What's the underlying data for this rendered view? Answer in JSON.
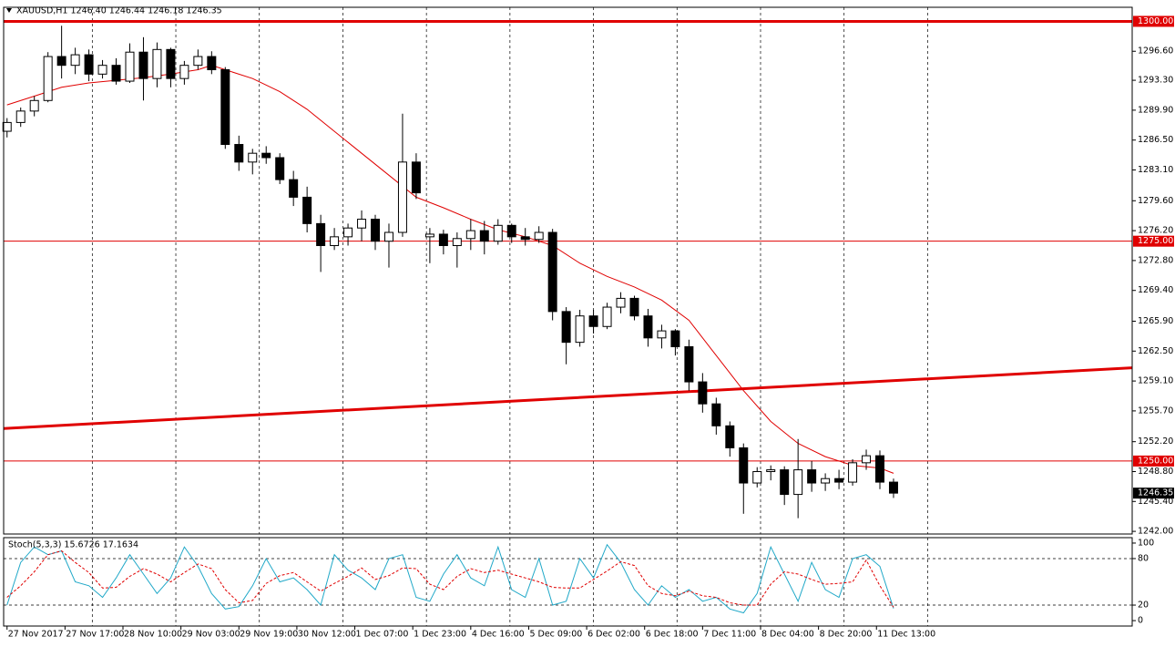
{
  "chart_data": [
    {
      "type": "candlestick",
      "title": "XAUUSD,H1  1246.40 1246.44 1246.18 1246.35",
      "xlim": [
        -1,
        330
      ],
      "ylim": [
        1241.7,
        1301.6
      ],
      "yticks": [
        {
          "value": 1296.6,
          "label": "1296.60"
        },
        {
          "value": 1293.3,
          "label": "1293.30"
        },
        {
          "value": 1289.9,
          "label": "1289.90"
        },
        {
          "value": 1286.5,
          "label": "1286.50"
        },
        {
          "value": 1283.1,
          "label": "1283.10"
        },
        {
          "value": 1279.6,
          "label": "1279.60"
        },
        {
          "value": 1276.2,
          "label": "1276.20"
        },
        {
          "value": 1272.8,
          "label": "1272.80"
        },
        {
          "value": 1269.4,
          "label": "1269.40"
        },
        {
          "value": 1265.9,
          "label": "1265.90"
        },
        {
          "value": 1262.5,
          "label": "1262.50"
        },
        {
          "value": 1259.1,
          "label": "1259.10"
        },
        {
          "value": 1255.7,
          "label": "1255.70"
        },
        {
          "value": 1252.2,
          "label": "1252.20"
        },
        {
          "value": 1248.8,
          "label": "1248.80"
        },
        {
          "value": 1245.4,
          "label": "1245.40"
        },
        {
          "value": 1242.0,
          "label": "1242.00"
        }
      ],
      "xgrid": [
        25,
        49.5,
        74,
        98.5,
        123,
        147.5,
        172,
        196.5,
        221,
        245.5,
        270
      ],
      "x": [
        0,
        4,
        8,
        12,
        16,
        20,
        24,
        28,
        32,
        36,
        40,
        44,
        48,
        52,
        56,
        60,
        64,
        68,
        72,
        76,
        80,
        84,
        88,
        92,
        96,
        100,
        104,
        108,
        112,
        116,
        120,
        124,
        128,
        132,
        136,
        140,
        144,
        148,
        152,
        156,
        160,
        164,
        168,
        172,
        176,
        180,
        184,
        188,
        192,
        196,
        200,
        204,
        208,
        212,
        216,
        220,
        224,
        228,
        232,
        236,
        240,
        244,
        248,
        252,
        256,
        260
      ],
      "open": [
        1287.5,
        1288.5,
        1289.8,
        1291,
        1296,
        1295,
        1296.2,
        1294,
        1295,
        1293.2,
        1296.5,
        1293.5,
        1296.8,
        1293.5,
        1295,
        1296,
        1294.5,
        1286,
        1284,
        1285,
        1284.5,
        1282,
        1280,
        1277,
        1274.5,
        1275.5,
        1276.5,
        1277.5,
        1275,
        1276,
        1284,
        1275.5,
        1275.8,
        1274.5,
        1275.3,
        1276.2,
        1275,
        1276.8,
        1275.5,
        1275.2,
        1276,
        1267,
        1263.5,
        1266.5,
        1265.3,
        1267.5,
        1268.5,
        1266.5,
        1264,
        1264.8,
        1263,
        1259,
        1256.5,
        1254,
        1251.5,
        1247.5,
        1248.8,
        1249,
        1246.2,
        1249,
        1247.5,
        1248,
        1247.6,
        1249.8,
        1250.6,
        1247.6
      ],
      "high": [
        1289,
        1290.2,
        1291.5,
        1296.5,
        1299.5,
        1297,
        1296.8,
        1295.6,
        1295.8,
        1297.5,
        1298.2,
        1297.6,
        1297,
        1295.5,
        1296.8,
        1296.6,
        1294.8,
        1287,
        1285.5,
        1285.8,
        1285,
        1283,
        1281.2,
        1278,
        1276.5,
        1277,
        1278.5,
        1278,
        1277,
        1289.5,
        1285,
        1276.5,
        1276.3,
        1276,
        1277.5,
        1277.3,
        1277.5,
        1277,
        1276.5,
        1276.7,
        1276.4,
        1267.5,
        1267.2,
        1267.2,
        1268,
        1269.2,
        1268.8,
        1267.3,
        1265.5,
        1265,
        1263.8,
        1260,
        1257.2,
        1254.5,
        1252,
        1249.3,
        1249.5,
        1249.4,
        1252.5,
        1250,
        1248.6,
        1249,
        1250.2,
        1251.3,
        1251.2,
        1248
      ],
      "low": [
        1286.8,
        1288,
        1289.2,
        1290.8,
        1293.5,
        1294,
        1293.2,
        1293.5,
        1292.8,
        1293,
        1291,
        1292.5,
        1292.5,
        1292.8,
        1294.5,
        1294,
        1285.5,
        1283,
        1282.6,
        1283.8,
        1281.5,
        1279,
        1276,
        1271.5,
        1274,
        1274.5,
        1275,
        1274,
        1272,
        1275.5,
        1279.8,
        1272.5,
        1273.5,
        1272,
        1274,
        1273.5,
        1274.6,
        1274.8,
        1274.5,
        1274.8,
        1266,
        1261,
        1263,
        1264.5,
        1265,
        1266.8,
        1266,
        1263,
        1262.8,
        1262,
        1258,
        1255.5,
        1253,
        1250.5,
        1244,
        1247,
        1247.8,
        1245,
        1243.5,
        1246.5,
        1246.6,
        1246.8,
        1247.2,
        1249,
        1246.8,
        1245.8
      ],
      "close": [
        1288.5,
        1289.8,
        1291,
        1296,
        1295,
        1296.2,
        1294,
        1295,
        1293.2,
        1296.5,
        1293.5,
        1296.8,
        1293.5,
        1295,
        1296,
        1294.5,
        1286,
        1284,
        1285,
        1284.5,
        1282,
        1280,
        1277,
        1274.5,
        1275.5,
        1276.5,
        1277.5,
        1275,
        1276,
        1284,
        1280.5,
        1275.8,
        1274.5,
        1275.3,
        1276.2,
        1275,
        1276.8,
        1275.5,
        1275.2,
        1276,
        1267,
        1263.5,
        1266.5,
        1265.3,
        1267.5,
        1268.5,
        1266.5,
        1264,
        1264.8,
        1263,
        1259,
        1256.5,
        1254,
        1251.5,
        1247.5,
        1248.8,
        1249,
        1246.2,
        1249,
        1247.5,
        1248,
        1247.6,
        1249.8,
        1250.6,
        1247.6,
        1246.35
      ],
      "ma": {
        "color": "#e00000",
        "x": [
          0,
          8,
          16,
          24,
          32,
          40,
          48,
          56,
          60,
          64,
          72,
          80,
          88,
          96,
          104,
          112,
          120,
          128,
          136,
          144,
          152,
          160,
          168,
          176,
          184,
          192,
          200,
          208,
          216,
          224,
          232,
          240,
          248,
          256,
          260
        ],
        "values": [
          1290.5,
          1291.5,
          1292.5,
          1293,
          1293.3,
          1293.6,
          1294,
          1294.5,
          1295,
          1294.5,
          1293.5,
          1292,
          1290,
          1287.5,
          1285,
          1282.5,
          1280,
          1278.8,
          1277.5,
          1276.3,
          1275.5,
          1274.5,
          1272.5,
          1271,
          1269.8,
          1268.3,
          1266,
          1262,
          1258,
          1254.5,
          1252,
          1250.5,
          1249.5,
          1249.2,
          1248.6
        ]
      },
      "levels": [
        {
          "value": 1300,
          "label": "1300.00",
          "thick": true
        },
        {
          "value": 1275,
          "label": "1275.00",
          "thick": false
        },
        {
          "value": 1250,
          "label": "1250.00",
          "thick": false
        }
      ],
      "trendline": {
        "x": [
          -1,
          330
        ],
        "y": [
          1253.7,
          1260.6
        ],
        "color": "#e00000"
      },
      "color": "#e00000"
    },
    {
      "type": "line",
      "title": "Stoch(5,3,3) 15.6726 17.1634",
      "xlim": [
        -1,
        330
      ],
      "ylim": [
        -7,
        107
      ],
      "yticks": [
        0,
        20,
        80,
        100
      ],
      "levels": [
        20,
        80
      ],
      "xgrid": [
        25,
        49.5,
        74,
        98.5,
        123,
        147.5,
        172,
        196.5,
        221,
        245.5,
        270
      ],
      "xticks": [
        {
          "value": 0,
          "label": "27 Nov 2017"
        },
        {
          "value": 17,
          "label": "27 Nov 17:00"
        },
        {
          "value": 34,
          "label": "28 Nov 10:00"
        },
        {
          "value": 51,
          "label": "29 Nov 03:00"
        },
        {
          "value": 68,
          "label": "29 Nov 19:00"
        },
        {
          "value": 85,
          "label": "30 Nov 12:00"
        },
        {
          "value": 102,
          "label": "1 Dec 07:00"
        },
        {
          "value": 119,
          "label": "1 Dec 23:00"
        },
        {
          "value": 136,
          "label": "4 Dec 16:00"
        },
        {
          "value": 153,
          "label": "5 Dec 09:00"
        },
        {
          "value": 170,
          "label": "6 Dec 02:00"
        },
        {
          "value": 187,
          "label": "6 Dec 18:00"
        },
        {
          "value": 204,
          "label": "7 Dec 11:00"
        },
        {
          "value": 221,
          "label": "8 Dec 04:00"
        },
        {
          "value": 238,
          "label": "8 Dec 20:00"
        },
        {
          "value": 255,
          "label": "11 Dec 13:00"
        }
      ],
      "x": [
        0,
        4,
        8,
        12,
        16,
        20,
        24,
        28,
        32,
        36,
        40,
        44,
        48,
        52,
        56,
        60,
        64,
        68,
        72,
        76,
        80,
        84,
        88,
        92,
        96,
        100,
        104,
        108,
        112,
        116,
        120,
        124,
        128,
        132,
        136,
        140,
        144,
        148,
        152,
        156,
        160,
        164,
        168,
        172,
        176,
        180,
        184,
        188,
        192,
        196,
        200,
        204,
        208,
        212,
        216,
        220,
        224,
        228,
        232,
        236,
        240,
        244,
        248,
        252,
        256,
        260
      ],
      "series": [
        {
          "color": "#20a8c8",
          "dashed": false,
          "values": [
            20,
            75,
            95,
            85,
            90,
            50,
            45,
            30,
            55,
            85,
            60,
            35,
            55,
            95,
            70,
            35,
            15,
            18,
            45,
            80,
            50,
            55,
            40,
            20,
            85,
            65,
            55,
            40,
            80,
            85,
            30,
            25,
            60,
            85,
            55,
            45,
            95,
            40,
            30,
            80,
            20,
            25,
            80,
            55,
            98,
            75,
            40,
            20,
            45,
            30,
            40,
            25,
            30,
            15,
            10,
            35,
            95,
            60,
            25,
            75,
            40,
            30,
            80,
            85,
            70,
            15.6726
          ]
        },
        {
          "color": "#e00000",
          "dashed": true,
          "values": [
            30,
            45,
            63,
            85,
            90,
            75,
            62,
            42,
            43,
            57,
            67,
            60,
            50,
            62,
            73,
            67,
            40,
            23,
            26,
            48,
            58,
            62,
            50,
            38,
            48,
            57,
            68,
            53,
            58,
            68,
            67,
            47,
            40,
            57,
            67,
            62,
            65,
            60,
            55,
            50,
            43,
            42,
            42,
            53,
            64,
            76,
            71,
            45,
            35,
            32,
            38,
            32,
            30,
            23,
            20,
            20,
            47,
            63,
            60,
            53,
            47,
            48,
            50,
            78,
            45,
            17.1634
          ]
        }
      ]
    }
  ]
}
